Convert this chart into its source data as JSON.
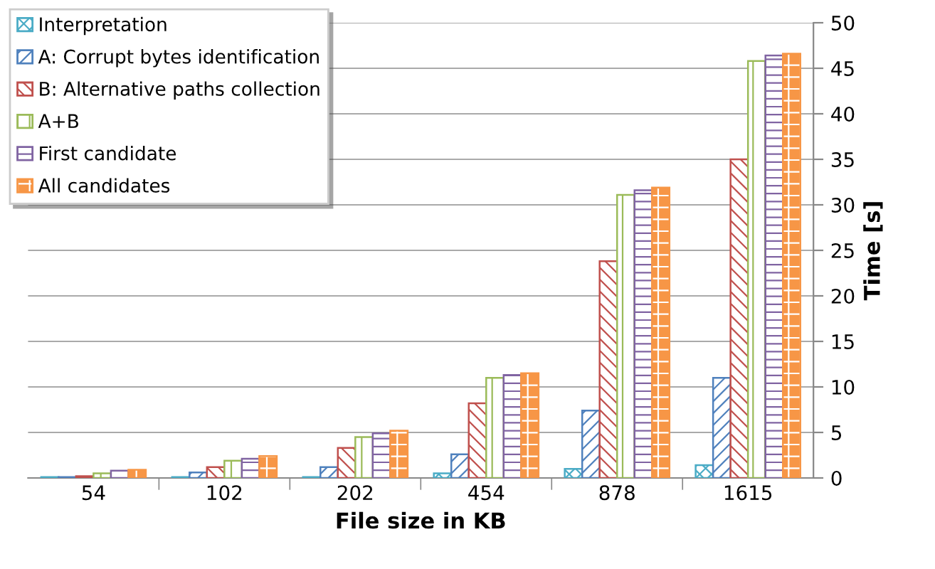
{
  "chart_data": {
    "type": "bar",
    "xlabel": "File size in KB",
    "ylabel": "Time [s]",
    "categories": [
      "54",
      "102",
      "202",
      "454",
      "878",
      "1615"
    ],
    "series": [
      {
        "name": "Interpretation",
        "color": "#4bacc6",
        "values": [
          0.1,
          0.1,
          0.1,
          0.5,
          1.0,
          1.4
        ]
      },
      {
        "name": "A: Corrupt bytes identification",
        "color": "#4f81bd",
        "values": [
          0.1,
          0.6,
          1.2,
          2.6,
          7.4,
          11.0
        ]
      },
      {
        "name": "B: Alternative paths collection",
        "color": "#c0504d",
        "values": [
          0.2,
          1.2,
          3.3,
          8.2,
          23.8,
          35.0
        ]
      },
      {
        "name": "A+B",
        "color": "#9bbb59",
        "values": [
          0.5,
          1.9,
          4.5,
          11.0,
          31.1,
          45.8
        ]
      },
      {
        "name": "First candidate",
        "color": "#8064a2",
        "values": [
          0.8,
          2.1,
          4.9,
          11.3,
          31.6,
          46.4
        ]
      },
      {
        "name": "All candidates",
        "color": "#f79646",
        "values": [
          0.9,
          2.4,
          5.2,
          11.5,
          31.9,
          46.6
        ]
      }
    ],
    "ylim": [
      0,
      50
    ],
    "yticks": [
      0,
      5,
      10,
      15,
      20,
      25,
      30,
      35,
      40,
      45,
      50
    ],
    "grid": "y",
    "legend": "top left"
  }
}
